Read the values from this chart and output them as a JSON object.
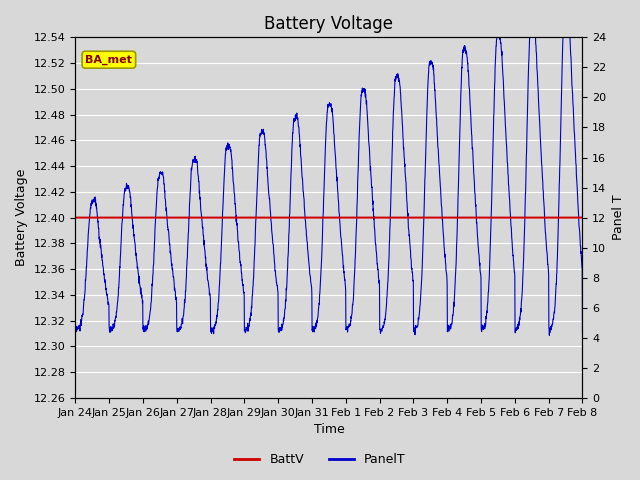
{
  "title": "Battery Voltage",
  "xlabel": "Time",
  "ylabel_left": "Battery Voltage",
  "ylabel_right": "Panel T",
  "batt_v_value": 12.4,
  "ylim_left": [
    12.26,
    12.54
  ],
  "ylim_right": [
    0,
    24
  ],
  "yticks_left": [
    12.26,
    12.28,
    12.3,
    12.32,
    12.34,
    12.36,
    12.38,
    12.4,
    12.42,
    12.44,
    12.46,
    12.48,
    12.5,
    12.52,
    12.54
  ],
  "yticks_right": [
    0,
    2,
    4,
    6,
    8,
    10,
    12,
    14,
    16,
    18,
    20,
    22,
    24
  ],
  "xtick_labels": [
    "Jan 24",
    "Jan 25",
    "Jan 26",
    "Jan 27",
    "Jan 28",
    "Jan 29",
    "Jan 30",
    "Jan 31",
    "Feb 1",
    "Feb 2",
    "Feb 3",
    "Feb 4",
    "Feb 5",
    "Feb 6",
    "Feb 7",
    "Feb 8"
  ],
  "batt_color": "#cc0000",
  "panel_color": "#0000cc",
  "background_color": "#d8d8d8",
  "plot_bg_color": "#d8d8d8",
  "grid_color": "#ffffff",
  "annotation_text": "BA_met",
  "annotation_bg": "#ffff00",
  "annotation_border": "#999900",
  "annotation_text_color": "#880000",
  "title_fontsize": 12,
  "axis_fontsize": 9,
  "tick_fontsize": 8,
  "legend_fontsize": 9
}
